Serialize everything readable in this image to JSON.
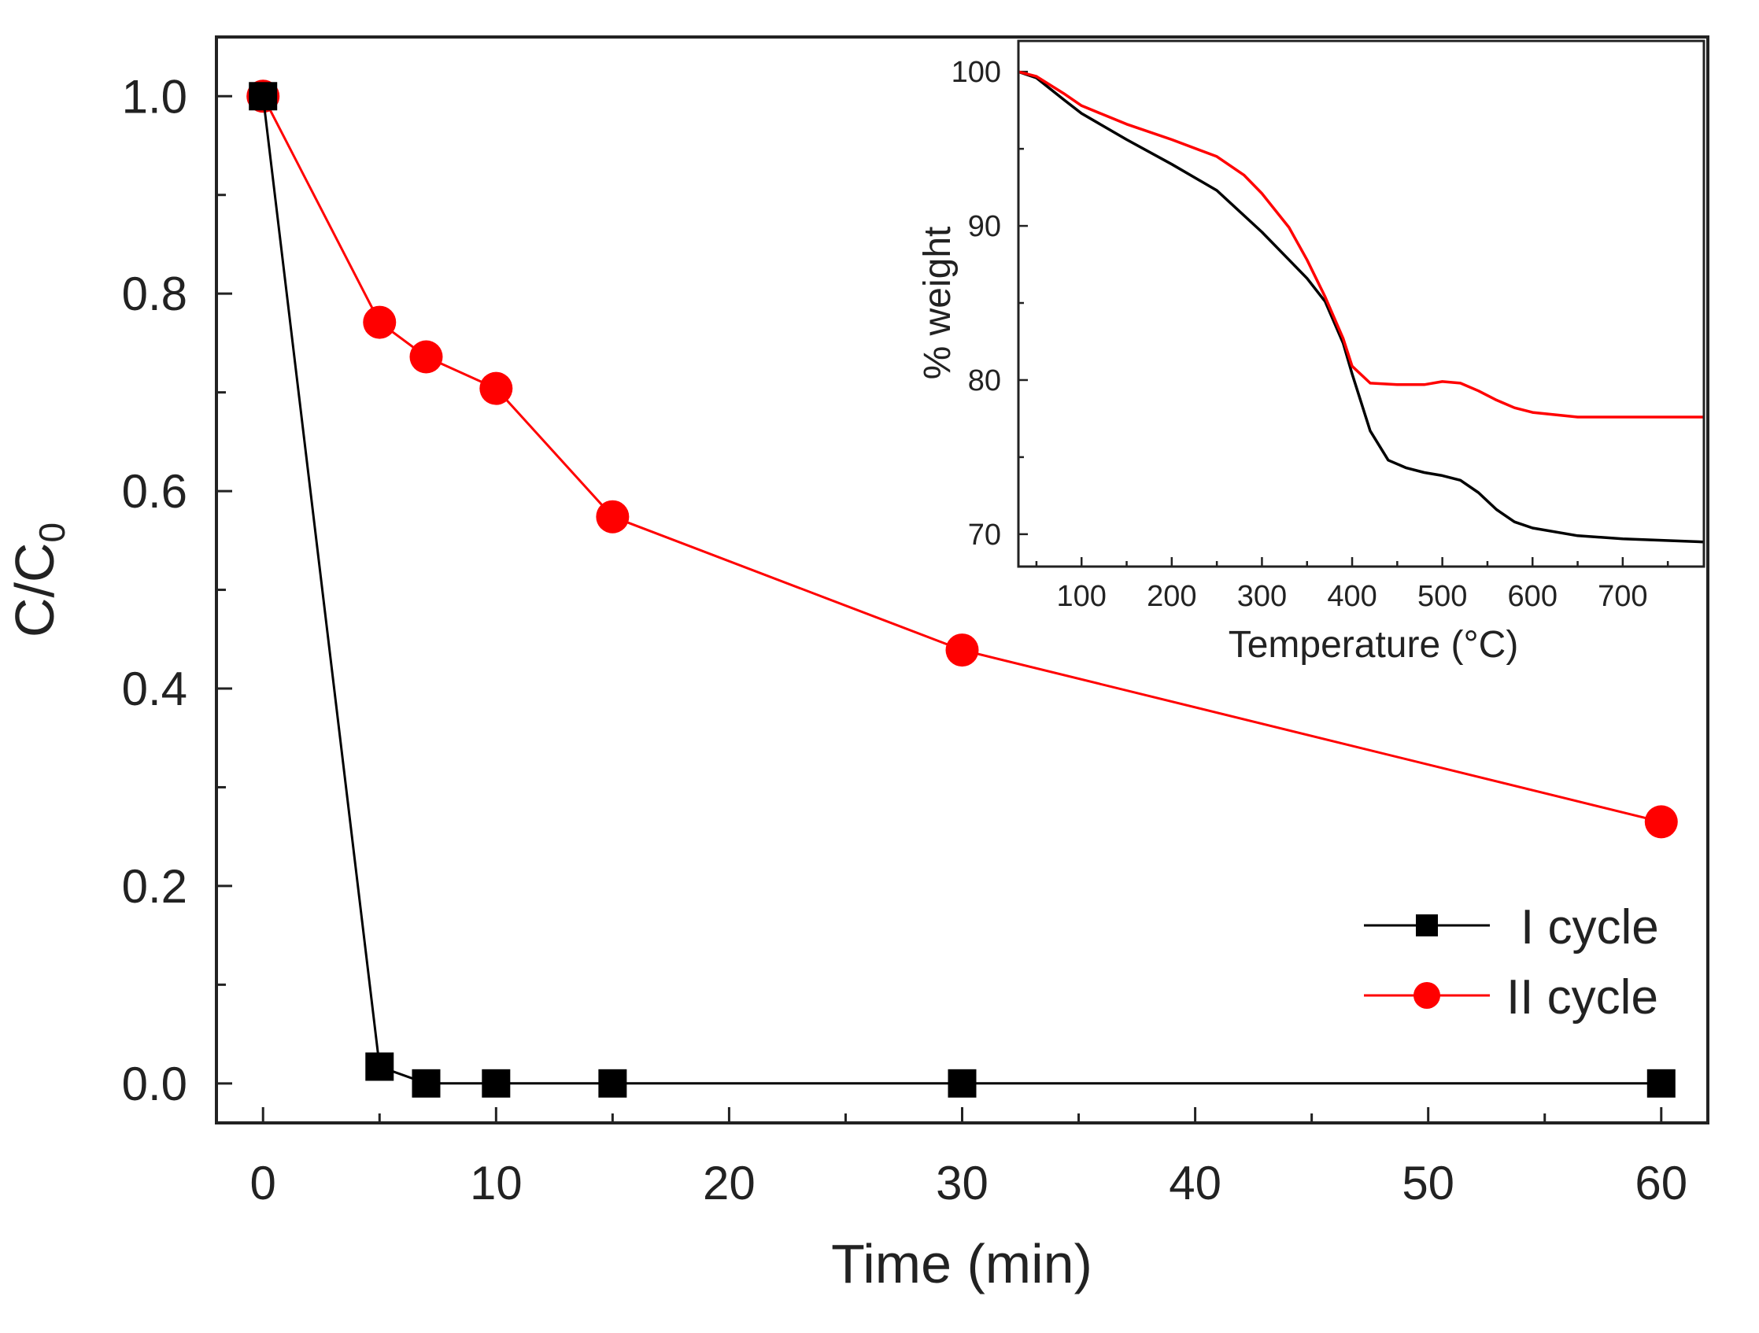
{
  "chart_data": [
    {
      "type": "line",
      "role": "main",
      "title": "",
      "xlabel": "Time (min)",
      "ylabel": "C/C",
      "ylabel_subscript": "0",
      "xlim": [
        -2,
        62
      ],
      "ylim": [
        -0.04,
        1.06
      ],
      "x_ticks": [
        0,
        10,
        20,
        30,
        40,
        50,
        60
      ],
      "y_ticks": [
        0.0,
        0.2,
        0.4,
        0.6,
        0.8,
        1.0
      ],
      "x_tick_labels": [
        "0",
        "10",
        "20",
        "30",
        "40",
        "50",
        "60"
      ],
      "y_tick_labels": [
        "0.0",
        "0.2",
        "0.4",
        "0.6",
        "0.8",
        "1.0"
      ],
      "legend_position": "bottom-right",
      "series": [
        {
          "name": "I cycle",
          "color": "#000000",
          "marker": "square",
          "x": [
            0,
            5,
            7,
            10,
            15,
            30,
            60
          ],
          "y": [
            1.0,
            0.017,
            0.0,
            0.0,
            0.0,
            0.0,
            0.0
          ]
        },
        {
          "name": "II cycle",
          "color": "#ff0000",
          "marker": "circle",
          "x": [
            0,
            5,
            7,
            10,
            15,
            30,
            60
          ],
          "y": [
            1.0,
            0.771,
            0.736,
            0.704,
            0.574,
            0.439,
            0.265
          ]
        }
      ]
    },
    {
      "type": "line",
      "role": "inset",
      "title": "",
      "xlabel": "Temperature (°C)",
      "ylabel": "% weight",
      "xlim": [
        30,
        790
      ],
      "ylim": [
        67.9,
        102
      ],
      "x_ticks": [
        100,
        200,
        300,
        400,
        500,
        600,
        700
      ],
      "y_ticks": [
        70,
        80,
        90,
        100
      ],
      "x_tick_labels": [
        "100",
        "200",
        "300",
        "400",
        "500",
        "600",
        "700"
      ],
      "y_tick_labels": [
        "70",
        "80",
        "90",
        "100"
      ],
      "series": [
        {
          "name": "black curve",
          "color": "#000000",
          "x": [
            30,
            50,
            80,
            100,
            150,
            200,
            250,
            300,
            330,
            350,
            370,
            390,
            400,
            420,
            440,
            460,
            480,
            500,
            520,
            540,
            560,
            580,
            600,
            650,
            700,
            790
          ],
          "y": [
            100,
            99.6,
            98.2,
            97.3,
            95.6,
            94.0,
            92.3,
            89.6,
            87.8,
            86.6,
            85.1,
            82.4,
            80.4,
            76.7,
            74.8,
            74.3,
            74.0,
            73.8,
            73.5,
            72.7,
            71.6,
            70.8,
            70.4,
            69.9,
            69.7,
            69.5
          ]
        },
        {
          "name": "red curve",
          "color": "#ff0000",
          "x": [
            30,
            50,
            80,
            100,
            150,
            200,
            250,
            280,
            300,
            330,
            350,
            370,
            390,
            400,
            420,
            450,
            480,
            500,
            520,
            540,
            560,
            580,
            600,
            650,
            700,
            790
          ],
          "y": [
            100,
            99.7,
            98.6,
            97.8,
            96.6,
            95.6,
            94.5,
            93.3,
            92.1,
            89.9,
            87.8,
            85.4,
            82.7,
            80.9,
            79.8,
            79.7,
            79.7,
            79.9,
            79.8,
            79.3,
            78.7,
            78.2,
            77.9,
            77.6,
            77.6,
            77.6
          ]
        }
      ]
    }
  ]
}
